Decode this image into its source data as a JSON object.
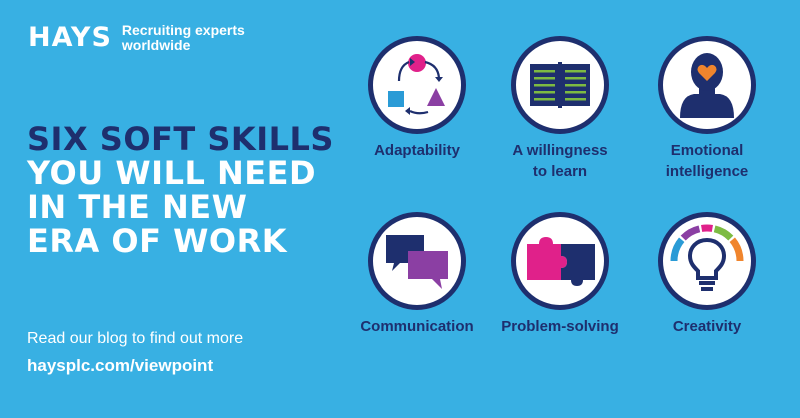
{
  "brand": {
    "name": "HAYS",
    "tagline_line1": "Recruiting experts",
    "tagline_line2": "worldwide"
  },
  "headline": {
    "line1": "SIX SOFT SKILLS",
    "line2": "YOU WILL NEED",
    "line3": "IN THE NEW",
    "line4": "ERA OF WORK"
  },
  "cta": {
    "text": "Read our blog to find out more",
    "url": "haysplc.com/viewpoint"
  },
  "skills": [
    {
      "label_line1": "Adaptability",
      "label_line2": "",
      "icon": "shapes-cycle-icon"
    },
    {
      "label_line1": "A willingness",
      "label_line2": "to learn",
      "icon": "open-book-icon"
    },
    {
      "label_line1": "Emotional",
      "label_line2": "intelligence",
      "icon": "head-heart-icon"
    },
    {
      "label_line1": "Communication",
      "label_line2": "",
      "icon": "speech-bubbles-icon"
    },
    {
      "label_line1": "Problem-solving",
      "label_line2": "",
      "icon": "puzzle-pieces-icon"
    },
    {
      "label_line1": "Creativity",
      "label_line2": "",
      "icon": "lightbulb-icon"
    }
  ],
  "colors": {
    "background": "#38b0e3",
    "navy": "#1e2f6e",
    "magenta": "#e0218a",
    "purple": "#8b3fa3",
    "green": "#7dbb42",
    "orange": "#f0852d",
    "blue": "#2a9bd6"
  }
}
